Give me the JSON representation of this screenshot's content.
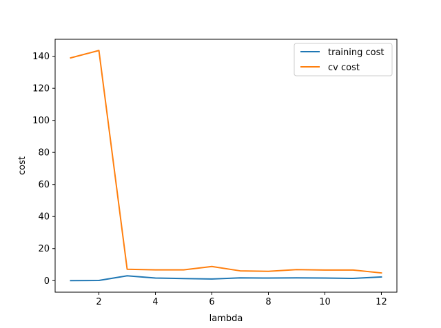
{
  "chart_data": {
    "type": "line",
    "xlabel": "lambda",
    "ylabel": "cost",
    "xlim": [
      0.45,
      12.55
    ],
    "ylim": [
      -7.2,
      150.6
    ],
    "x_ticks": [
      2,
      4,
      6,
      8,
      10,
      12
    ],
    "y_ticks": [
      0,
      20,
      40,
      60,
      80,
      100,
      120,
      140
    ],
    "x": [
      1,
      2,
      3,
      4,
      5,
      6,
      7,
      8,
      9,
      10,
      11,
      12
    ],
    "series": [
      {
        "name": "training cost",
        "color": "#1f77b4",
        "values": [
          0.0,
          0.1,
          3.0,
          1.6,
          1.3,
          1.0,
          1.7,
          1.6,
          1.7,
          1.6,
          1.4,
          2.3
        ]
      },
      {
        "name": "cv cost",
        "color": "#ff7f0e",
        "values": [
          139.0,
          143.6,
          7.1,
          6.7,
          6.7,
          8.8,
          6.1,
          5.8,
          6.9,
          6.6,
          6.6,
          4.8
        ]
      }
    ],
    "legend_position": "top-right",
    "grid": false
  }
}
